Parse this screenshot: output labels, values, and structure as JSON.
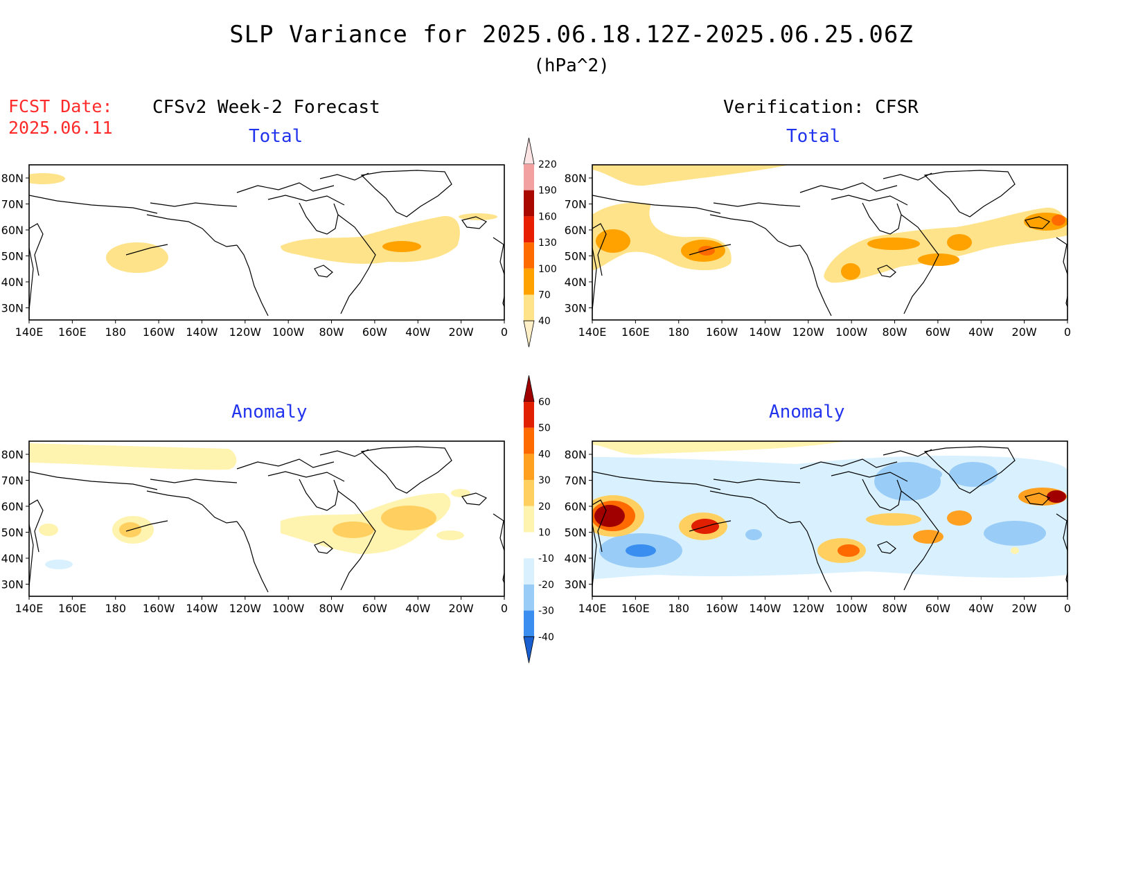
{
  "header": {
    "title": "SLP Variance for 2025.06.18.12Z-2025.06.25.06Z",
    "units": "(hPa^2)",
    "fcst_label": "FCST Date:",
    "fcst_date": "2025.06.11"
  },
  "columns": {
    "left": "CFSv2 Week-2 Forecast",
    "right": "Verification: CFSR"
  },
  "panels": {
    "top_left": "Total",
    "top_right": "Total",
    "bottom_left": "Anomaly",
    "bottom_right": "Anomaly"
  },
  "axes": {
    "lat_labels": [
      "80N",
      "70N",
      "60N",
      "50N",
      "40N",
      "30N"
    ],
    "lon_labels": [
      "140E",
      "160E",
      "180",
      "160W",
      "140W",
      "120W",
      "100W",
      "80W",
      "60W",
      "40W",
      "20W",
      "0"
    ]
  },
  "colorbars": {
    "total": {
      "levels": [
        "40",
        "70",
        "100",
        "130",
        "160",
        "190",
        "220"
      ],
      "colors": [
        "#fff0c8",
        "#ffe38a",
        "#ffa200",
        "#ff6a00",
        "#e81e00",
        "#a80800",
        "#f2a0a0",
        "#fde4e4"
      ]
    },
    "anomaly": {
      "levels": [
        "-40",
        "-30",
        "-20",
        "-10",
        "10",
        "20",
        "30",
        "40",
        "50",
        "60"
      ],
      "colors": [
        "#1a5fd0",
        "#3a8ef0",
        "#99ccf7",
        "#d9f1ff",
        "#ffffff",
        "#fff3b0",
        "#ffd060",
        "#ffa020",
        "#ff6a00",
        "#e02000",
        "#a00000"
      ]
    }
  }
}
